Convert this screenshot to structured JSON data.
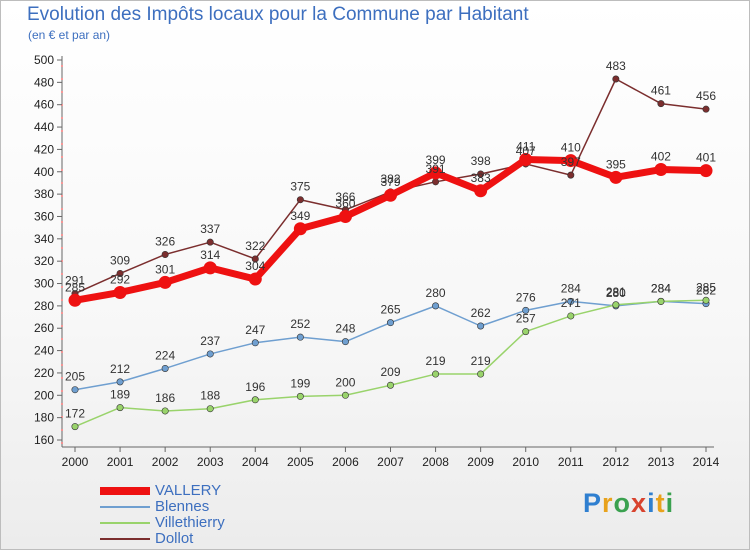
{
  "header": {
    "title": "Evolution des Impôts locaux pour la Commune par Habitant",
    "subtitle": "(en € et par an)"
  },
  "brand": {
    "text": "Proxiti"
  },
  "chart_data": {
    "type": "line",
    "x": [
      2000,
      2001,
      2002,
      2003,
      2004,
      2005,
      2006,
      2007,
      2008,
      2009,
      2010,
      2011,
      2012,
      2013,
      2014
    ],
    "ylim": [
      160,
      500
    ],
    "yticks": [
      160,
      180,
      200,
      220,
      240,
      260,
      280,
      300,
      320,
      340,
      360,
      380,
      400,
      420,
      440,
      460,
      480,
      500
    ],
    "grid": false,
    "legend_position": "bottom-left",
    "series": [
      {
        "name": "Dollot",
        "color": "#7b2e2e",
        "values": [
          291,
          309,
          326,
          337,
          322,
          375,
          366,
          382,
          391,
          398,
          407,
          397,
          483,
          461,
          456
        ],
        "labels": [
          "291",
          "309",
          "326",
          "337",
          "322",
          "375",
          "366",
          "382",
          "391",
          "398",
          "407",
          "397",
          "483",
          "461",
          "456"
        ]
      },
      {
        "name": "Blennes",
        "color": "#6f9fd0",
        "values": [
          205,
          212,
          224,
          237,
          247,
          252,
          248,
          265,
          280,
          262,
          276,
          284,
          280,
          284,
          282
        ],
        "labels": [
          "205",
          "212",
          "224",
          "237",
          "247",
          "252",
          "248",
          "265",
          "280",
          "262",
          "276",
          "284",
          "280",
          "284",
          "282"
        ]
      },
      {
        "name": "Villethierry",
        "color": "#99d36b",
        "values": [
          172,
          189,
          186,
          188,
          196,
          199,
          200,
          209,
          219,
          219,
          257,
          271,
          281,
          284,
          285
        ],
        "labels": [
          "172",
          "189",
          "186",
          "188",
          "196",
          "199",
          "200",
          "209",
          "219",
          "219",
          "257",
          "271",
          "281",
          "284",
          "285"
        ]
      },
      {
        "name": "VALLERY",
        "color": "#ee1111",
        "values": [
          285,
          292,
          301,
          314,
          304,
          349,
          360,
          379,
          399,
          383,
          411,
          410,
          395,
          402,
          401
        ],
        "labels": [
          "285",
          "292",
          "301",
          "314",
          "304",
          "349",
          "360",
          "379",
          "399",
          "383",
          "411",
          "410",
          "395",
          "402",
          "401"
        ]
      }
    ]
  },
  "legend": [
    {
      "name": "VALLERY",
      "color": "#ee1111",
      "thick": true
    },
    {
      "name": "Blennes",
      "color": "#6f9fd0",
      "thick": false
    },
    {
      "name": "Villethierry",
      "color": "#99d36b",
      "thick": false
    },
    {
      "name": "Dollot",
      "color": "#7b2e2e",
      "thick": false
    }
  ]
}
